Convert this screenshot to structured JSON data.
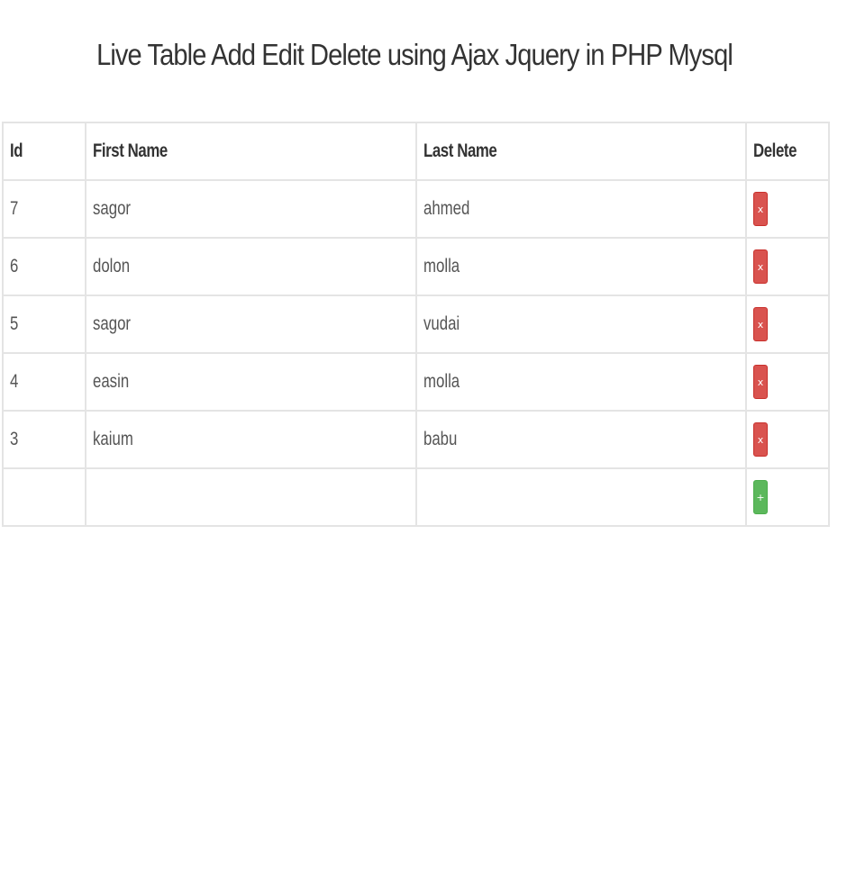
{
  "title": "Live Table Add Edit Delete using Ajax Jquery in PHP Mysql",
  "table": {
    "headers": {
      "id": "Id",
      "first_name": "First Name",
      "last_name": "Last Name",
      "delete": "Delete"
    },
    "rows": [
      {
        "id": "7",
        "first_name": "sagor",
        "last_name": "ahmed",
        "delete_label": "x"
      },
      {
        "id": "6",
        "first_name": "dolon",
        "last_name": "molla",
        "delete_label": "x"
      },
      {
        "id": "5",
        "first_name": "sagor",
        "last_name": "vudai",
        "delete_label": "x"
      },
      {
        "id": "4",
        "first_name": "easin",
        "last_name": "molla",
        "delete_label": "x"
      },
      {
        "id": "3",
        "first_name": "kaium",
        "last_name": "babu",
        "delete_label": "x"
      }
    ],
    "new_row": {
      "id": "",
      "first_name": "",
      "last_name": "",
      "add_label": "+"
    }
  },
  "colors": {
    "delete_button": "#d9534f",
    "add_button": "#5cb85c",
    "border": "#e4e4e4"
  }
}
